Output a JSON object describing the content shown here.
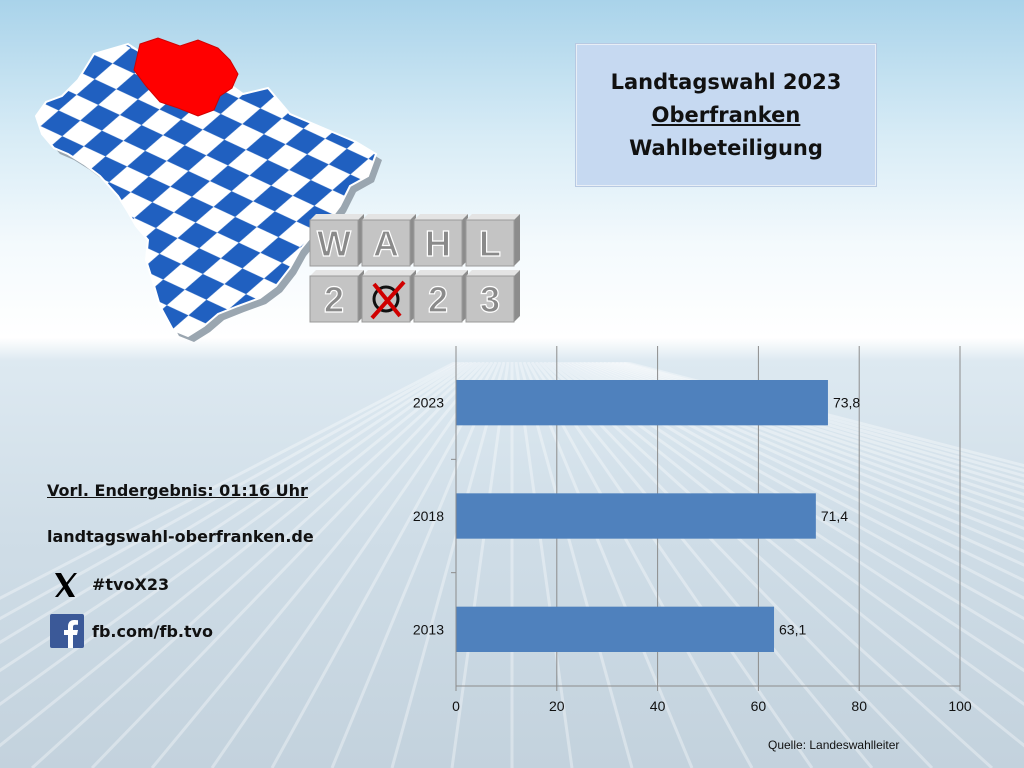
{
  "title": {
    "line1": "Landtagswahl 2023",
    "line2": "Oberfranken",
    "line3": "Wahlbeteiligung"
  },
  "info": {
    "result_time": "Vorl. Endergebnis: 01:16 Uhr",
    "website": "landtagswahl-oberfranken.de",
    "x_handle": "#tvoX23",
    "facebook": "fb.com/fb.tvo"
  },
  "logo": {
    "letters_top": [
      "W",
      "A",
      "H",
      "L"
    ],
    "letters_bottom": [
      "2",
      "",
      "2",
      "3"
    ]
  },
  "source": "Quelle: Landeswahlleiter",
  "icons": {
    "x": "x-logo-icon",
    "facebook": "facebook-icon",
    "map": "bavaria-map-icon",
    "ballot": "ballot-cross-icon"
  },
  "colors": {
    "bar": "#4f81bd",
    "highlight_region": "#ff0000",
    "diamond": "#2060c0",
    "title_box": "#c6d9f1"
  },
  "chart_data": {
    "type": "bar",
    "orientation": "horizontal",
    "categories": [
      "2023",
      "2018",
      "2013"
    ],
    "values": [
      73.8,
      71.4,
      63.1
    ],
    "value_labels": [
      "73,8",
      "71,4",
      "63,1"
    ],
    "xlim": [
      0,
      100
    ],
    "x_ticks": [
      0,
      20,
      40,
      60,
      80,
      100
    ],
    "grid": true,
    "legend": "none"
  }
}
